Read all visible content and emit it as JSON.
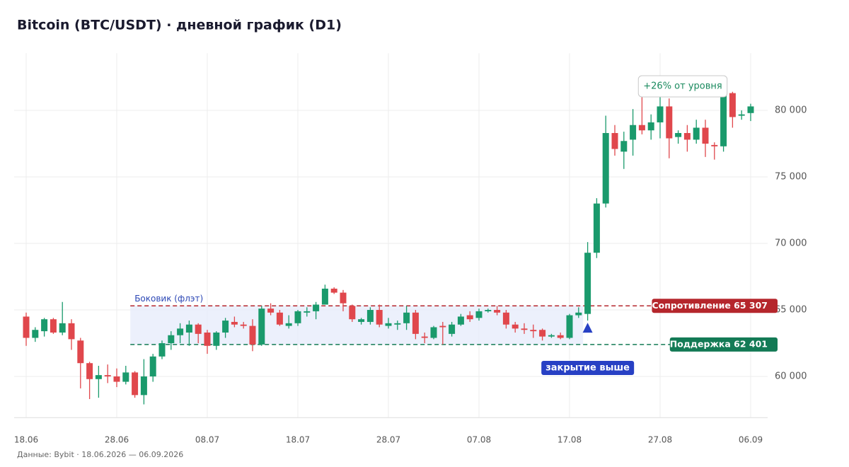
{
  "chart_data": {
    "type": "candlestick",
    "title": "Bitcoin (BTC/USDT) · дневной график (D1)",
    "categories": [
      "18.06",
      null,
      null,
      null,
      null,
      null,
      null,
      null,
      null,
      null,
      "28.06",
      null,
      null,
      null,
      null,
      null,
      null,
      null,
      null,
      null,
      "08.07",
      null,
      null,
      null,
      null,
      null,
      null,
      null,
      null,
      null,
      "18.07",
      null,
      null,
      null,
      null,
      null,
      null,
      null,
      null,
      null,
      "28.07",
      null,
      null,
      null,
      null,
      null,
      null,
      null,
      null,
      null,
      "07.08",
      null,
      null,
      null,
      null,
      null,
      null,
      null,
      null,
      null,
      "17.08",
      null,
      null,
      null,
      null,
      null,
      null,
      null,
      null,
      null,
      "27.08",
      null,
      null,
      null,
      null,
      null,
      null,
      null,
      null,
      null,
      "06.09"
    ],
    "open": [
      64500,
      62900,
      63400,
      64300,
      63300,
      64000,
      62700,
      61000,
      59800,
      60100,
      60000,
      59600,
      60300,
      58600,
      60000,
      61500,
      62500,
      63100,
      63300,
      63900,
      63300,
      62300,
      63300,
      64100,
      63900,
      63800,
      62400,
      65100,
      64800,
      63800,
      64000,
      64800,
      64900,
      65400,
      66600,
      66300,
      65300,
      64100,
      64100,
      65000,
      63800,
      63900,
      64000,
      64800,
      63000,
      62900,
      63800,
      63200,
      63900,
      64600,
      64400,
      64900,
      65000,
      64800,
      63900,
      63600,
      63500,
      63500,
      63000,
      63100,
      62900,
      64600,
      64700,
      69300,
      73000,
      78300,
      76900,
      77800,
      78900,
      78500,
      79100,
      80300,
      78000,
      78300,
      77800,
      78700,
      77400,
      77300,
      81300,
      79600,
      79800
    ],
    "high": [
      64800,
      63700,
      64400,
      64400,
      65600,
      64300,
      62900,
      61100,
      60800,
      60900,
      60600,
      60800,
      60400,
      61300,
      61700,
      62700,
      63400,
      64000,
      64200,
      64000,
      63500,
      63400,
      64400,
      64500,
      64100,
      64300,
      65300,
      65500,
      65000,
      64600,
      65000,
      65200,
      65600,
      66900,
      66700,
      66500,
      65400,
      64400,
      65200,
      65400,
      64400,
      64200,
      65300,
      65000,
      63300,
      63800,
      64100,
      64100,
      64700,
      64900,
      65100,
      65100,
      65300,
      65000,
      64100,
      64000,
      63900,
      63600,
      63200,
      63300,
      64700,
      65200,
      70100,
      73400,
      79600,
      78900,
      78400,
      80100,
      81000,
      79700,
      81100,
      80900,
      78500,
      78900,
      79300,
      79300,
      77600,
      81800,
      81400,
      80000,
      80500
    ],
    "low": [
      62300,
      62600,
      63000,
      63200,
      63100,
      62000,
      59100,
      58300,
      58400,
      59500,
      59200,
      59400,
      58400,
      57900,
      59600,
      61300,
      62000,
      62500,
      62300,
      62500,
      61700,
      62000,
      62900,
      63700,
      63600,
      61900,
      62300,
      64600,
      63800,
      63600,
      63800,
      64500,
      64300,
      65400,
      66200,
      64900,
      64100,
      63900,
      63900,
      63700,
      63600,
      63500,
      63500,
      62800,
      62500,
      62800,
      62400,
      63000,
      63800,
      64100,
      64200,
      64800,
      64600,
      63600,
      63300,
      63200,
      62900,
      62700,
      62900,
      62800,
      62800,
      64400,
      64200,
      68900,
      72700,
      76600,
      75600,
      76600,
      78200,
      77800,
      77900,
      76400,
      77500,
      76900,
      77500,
      76500,
      76300,
      76900,
      78700,
      79300,
      79200
    ],
    "close": [
      62900,
      63500,
      64300,
      63300,
      64000,
      62800,
      61000,
      59800,
      60100,
      60000,
      59600,
      60300,
      58600,
      60000,
      61500,
      62500,
      63100,
      63600,
      63900,
      63200,
      62300,
      63300,
      64200,
      63900,
      63800,
      62400,
      65100,
      64800,
      63900,
      64000,
      64900,
      64900,
      65400,
      66600,
      66300,
      65500,
      64300,
      64300,
      65000,
      63900,
      64000,
      64000,
      64800,
      63200,
      62900,
      63700,
      63700,
      63900,
      64500,
      64300,
      64900,
      65000,
      64800,
      63900,
      63600,
      63500,
      63400,
      63000,
      63100,
      62900,
      64600,
      64800,
      69300,
      73000,
      78300,
      77100,
      77700,
      78900,
      78500,
      79100,
      80300,
      77900,
      78300,
      77800,
      78700,
      77500,
      77300,
      81300,
      79500,
      79700,
      80300
    ],
    "up_color": "#1a9a6c",
    "down_color": "#e0474c",
    "ylim": [
      56900,
      84300
    ],
    "yticks": [
      {
        "value": 60000,
        "label": "60 000"
      },
      {
        "value": 65000,
        "label": "65 000"
      },
      {
        "value": 70000,
        "label": "70 000"
      },
      {
        "value": 75000,
        "label": "75 000"
      },
      {
        "value": 80000,
        "label": "80 000"
      }
    ],
    "grid": true,
    "range_label": "Боковик (флэт)",
    "resistance": {
      "value": 65307,
      "label": "Сопротивление 65 307",
      "color": "#b5262c"
    },
    "support": {
      "value": 62401,
      "label": "Поддержка 62 401",
      "color": "#137a55"
    },
    "breakout_label": "закрытие выше",
    "gain_label": "+26% от уровня"
  },
  "source": "Данные: Bybit · 18.06.2026 — 06.09.2026"
}
